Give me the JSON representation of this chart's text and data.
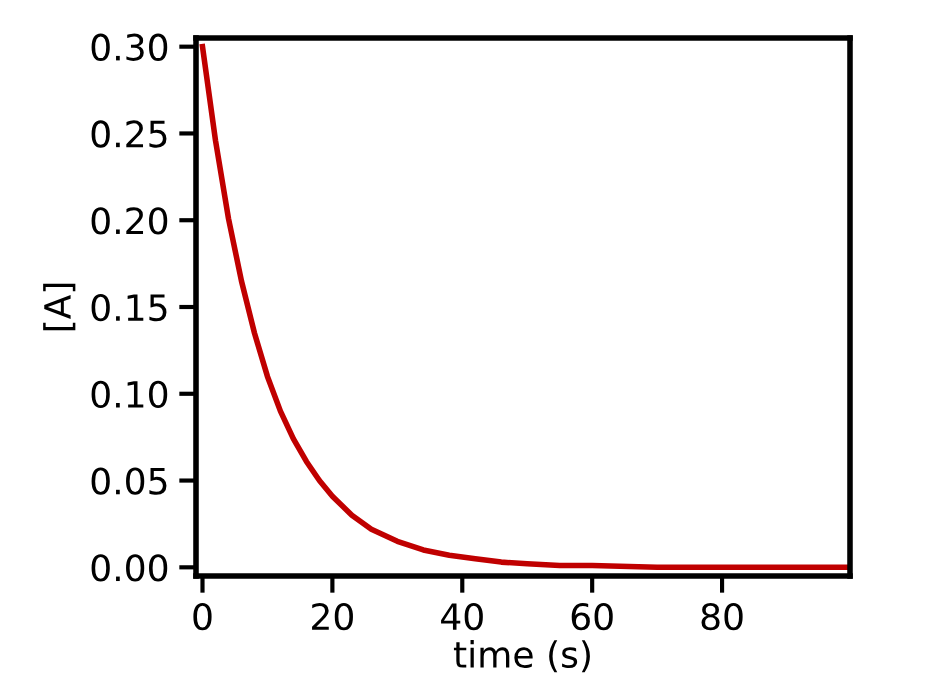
{
  "chart_data": {
    "type": "line",
    "xlabel": "time (s)",
    "ylabel": "[A]",
    "x": [
      0,
      2,
      4,
      6,
      8,
      10,
      12,
      14,
      16,
      18,
      20,
      23,
      26,
      30,
      34,
      38,
      42,
      46,
      50,
      55,
      60,
      70,
      80,
      90,
      99
    ],
    "series": [
      {
        "color": "#c00000",
        "values": [
          0.3,
          0.246,
          0.201,
          0.165,
          0.135,
          0.11,
          0.09,
          0.074,
          0.061,
          0.05,
          0.041,
          0.03,
          0.022,
          0.015,
          0.01,
          0.007,
          0.005,
          0.003,
          0.002,
          0.001,
          0.001,
          0.0,
          0.0,
          0.0,
          0.0
        ]
      }
    ],
    "xlim": [
      -1,
      99.7
    ],
    "ylim": [
      -0.005,
      0.305
    ],
    "xticks": [
      0,
      20,
      40,
      60,
      80
    ],
    "yticks": [
      {
        "value": 0,
        "label": "0.00"
      },
      {
        "value": 0.05,
        "label": "0.05"
      },
      {
        "value": 0.1,
        "label": "0.10"
      },
      {
        "value": 0.15,
        "label": "0.15"
      },
      {
        "value": 0.2,
        "label": "0.20"
      },
      {
        "value": 0.25,
        "label": "0.25"
      },
      {
        "value": 0.3,
        "label": "0.30"
      }
    ],
    "grid": false,
    "line_style": "solid"
  }
}
